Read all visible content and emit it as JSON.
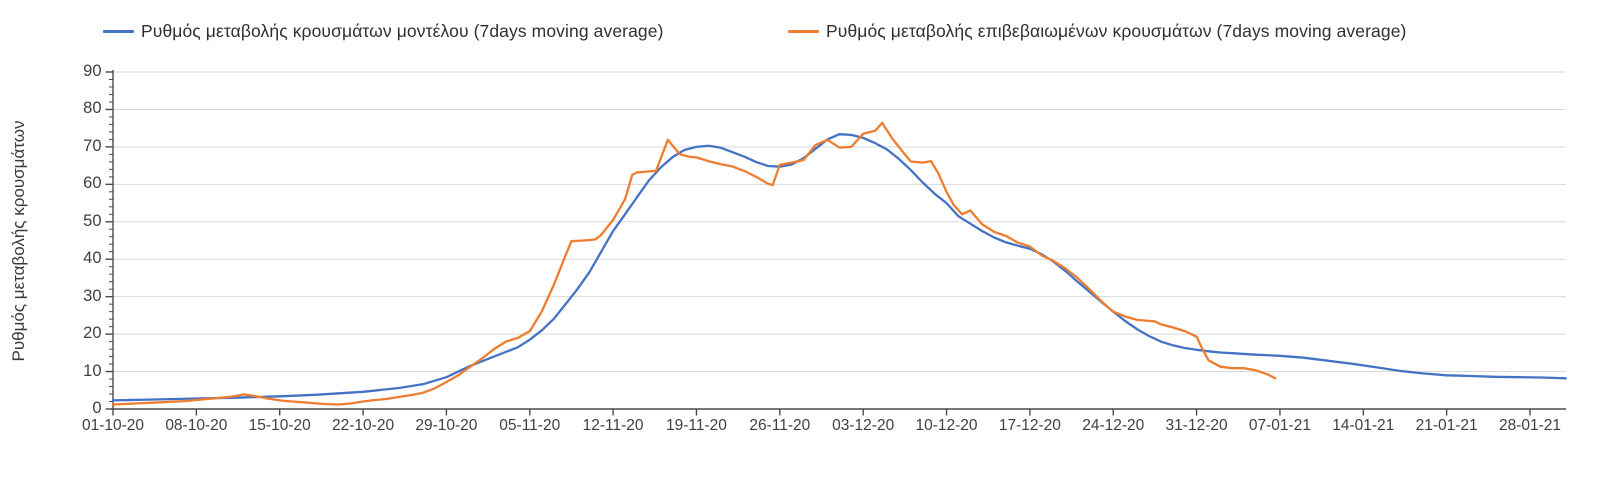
{
  "legend": {
    "model_label": "Ρυθμός μεταβολής κρουσμάτων μοντέλου (7days moving average)",
    "confirmed_label": "Ρυθμός μεταβολής επιβεβαιωμένων κρουσμάτων (7days moving average)"
  },
  "chart_data": {
    "type": "line",
    "title": "",
    "xlabel": "",
    "ylabel": "Ρυθμός μεταβολής κρουσμάτων",
    "ylim": [
      0,
      90
    ],
    "ytick_step": 10,
    "ytick_labels": [
      "0",
      "10",
      "20",
      "30",
      "40",
      "50",
      "60",
      "70",
      "80",
      "90"
    ],
    "grid": "horizontal",
    "legend_position": "top",
    "x_tick_interval_days": 7,
    "x_ticklabels": [
      "01-10-20",
      "08-10-20",
      "15-10-20",
      "22-10-20",
      "29-10-20",
      "05-11-20",
      "12-11-20",
      "19-11-20",
      "26-11-20",
      "03-12-20",
      "10-12-20",
      "17-12-20",
      "24-12-20",
      "31-12-20",
      "07-01-21",
      "14-01-21",
      "21-01-21",
      "28-01-21"
    ],
    "axis_color": "#4a4a4a",
    "grid_color": "#d9d9d9",
    "series": [
      {
        "name": "Ρυθμός μεταβολής κρουσμάτων μοντέλου (7days moving average)",
        "color": "#4472C4",
        "points": [
          [
            0,
            2.3
          ],
          [
            3,
            2.5
          ],
          [
            7,
            2.8
          ],
          [
            10,
            3.0
          ],
          [
            14,
            3.4
          ],
          [
            17,
            3.8
          ],
          [
            21,
            4.6
          ],
          [
            24,
            5.6
          ],
          [
            26,
            6.6
          ],
          [
            28,
            8.5
          ],
          [
            30,
            11.5
          ],
          [
            32,
            14.0
          ],
          [
            34,
            16.5
          ],
          [
            35,
            18.5
          ],
          [
            36,
            21.0
          ],
          [
            37,
            24.0
          ],
          [
            38,
            28.0
          ],
          [
            39,
            32.0
          ],
          [
            40,
            36.5
          ],
          [
            41,
            42.0
          ],
          [
            42,
            47.5
          ],
          [
            43,
            52.0
          ],
          [
            44,
            56.5
          ],
          [
            45,
            61.0
          ],
          [
            46,
            64.5
          ],
          [
            47,
            67.3
          ],
          [
            48,
            69.2
          ],
          [
            49,
            70.0
          ],
          [
            50,
            70.3
          ],
          [
            51,
            69.8
          ],
          [
            52,
            68.6
          ],
          [
            53,
            67.4
          ],
          [
            54,
            66.0
          ],
          [
            55,
            64.9
          ],
          [
            56,
            64.7
          ],
          [
            57,
            65.3
          ],
          [
            58,
            67.0
          ],
          [
            59,
            69.5
          ],
          [
            60,
            72.0
          ],
          [
            61,
            73.4
          ],
          [
            62,
            73.2
          ],
          [
            63,
            72.4
          ],
          [
            64,
            71.0
          ],
          [
            65,
            69.3
          ],
          [
            66,
            66.8
          ],
          [
            67,
            63.8
          ],
          [
            68,
            60.5
          ],
          [
            69,
            57.5
          ],
          [
            70,
            55.0
          ],
          [
            71,
            51.5
          ],
          [
            72,
            49.5
          ],
          [
            73,
            47.5
          ],
          [
            74,
            45.8
          ],
          [
            75,
            44.5
          ],
          [
            76,
            43.6
          ],
          [
            77,
            42.8
          ],
          [
            78,
            41.3
          ],
          [
            79,
            39.3
          ],
          [
            80,
            36.8
          ],
          [
            81,
            34.0
          ],
          [
            82,
            31.3
          ],
          [
            83,
            28.6
          ],
          [
            84,
            26.0
          ],
          [
            85,
            23.5
          ],
          [
            86,
            21.3
          ],
          [
            87,
            19.5
          ],
          [
            88,
            18.0
          ],
          [
            89,
            17.0
          ],
          [
            90,
            16.3
          ],
          [
            91,
            15.8
          ],
          [
            92,
            15.4
          ],
          [
            93,
            15.1
          ],
          [
            94,
            14.9
          ],
          [
            96,
            14.5
          ],
          [
            98,
            14.2
          ],
          [
            100,
            13.7
          ],
          [
            102,
            12.9
          ],
          [
            104,
            12.1
          ],
          [
            106,
            11.2
          ],
          [
            108,
            10.2
          ],
          [
            110,
            9.5
          ],
          [
            112,
            9.0
          ],
          [
            114,
            8.8
          ],
          [
            116,
            8.6
          ],
          [
            118,
            8.5
          ],
          [
            120,
            8.4
          ],
          [
            122,
            8.2
          ]
        ]
      },
      {
        "name": "Ρυθμός μεταβολής επιβεβαιωμένων κρουσμάτων (7days moving average)",
        "color": "#ED7D31",
        "points": [
          [
            0,
            1.2
          ],
          [
            2,
            1.5
          ],
          [
            4,
            1.8
          ],
          [
            6,
            2.1
          ],
          [
            7,
            2.4
          ],
          [
            8,
            2.7
          ],
          [
            9,
            3.0
          ],
          [
            10,
            3.3
          ],
          [
            11,
            3.9
          ],
          [
            12,
            3.4
          ],
          [
            13,
            2.8
          ],
          [
            14,
            2.3
          ],
          [
            15,
            2.0
          ],
          [
            16,
            1.8
          ],
          [
            17,
            1.5
          ],
          [
            18,
            1.3
          ],
          [
            19,
            1.2
          ],
          [
            20,
            1.5
          ],
          [
            21,
            2.0
          ],
          [
            22,
            2.4
          ],
          [
            23,
            2.7
          ],
          [
            24,
            3.2
          ],
          [
            25,
            3.7
          ],
          [
            26,
            4.3
          ],
          [
            27,
            5.5
          ],
          [
            28,
            7.2
          ],
          [
            29,
            9.0
          ],
          [
            30,
            11.3
          ],
          [
            31,
            13.5
          ],
          [
            32,
            16.0
          ],
          [
            33,
            18.0
          ],
          [
            34,
            19.0
          ],
          [
            35,
            20.8
          ],
          [
            36,
            26.0
          ],
          [
            37,
            33.0
          ],
          [
            38,
            41.0
          ],
          [
            38.5,
            44.8
          ],
          [
            40,
            45.1
          ],
          [
            40.5,
            45.3
          ],
          [
            41,
            46.5
          ],
          [
            42,
            50.5
          ],
          [
            43,
            56.0
          ],
          [
            43.6,
            62.5
          ],
          [
            44,
            63.2
          ],
          [
            45.6,
            63.6
          ],
          [
            46.6,
            71.9
          ],
          [
            47.6,
            68.0
          ],
          [
            48.5,
            67.3
          ],
          [
            49,
            67.2
          ],
          [
            50,
            66.2
          ],
          [
            51,
            65.4
          ],
          [
            52,
            64.8
          ],
          [
            53,
            63.6
          ],
          [
            54,
            62.0
          ],
          [
            55,
            60.2
          ],
          [
            55.4,
            59.8
          ],
          [
            56,
            65.2
          ],
          [
            57,
            65.8
          ],
          [
            58,
            66.5
          ],
          [
            59,
            70.5
          ],
          [
            60,
            71.9
          ],
          [
            61,
            69.8
          ],
          [
            62,
            70.0
          ],
          [
            63,
            73.5
          ],
          [
            64,
            74.3
          ],
          [
            64.6,
            76.4
          ],
          [
            65.5,
            72.0
          ],
          [
            66.5,
            68.0
          ],
          [
            67,
            66.1
          ],
          [
            68,
            65.8
          ],
          [
            68.7,
            66.2
          ],
          [
            69.3,
            63.0
          ],
          [
            70,
            58.0
          ],
          [
            70.6,
            54.5
          ],
          [
            71.3,
            52.0
          ],
          [
            72,
            53.0
          ],
          [
            73,
            49.3
          ],
          [
            74,
            47.3
          ],
          [
            75,
            46.2
          ],
          [
            76,
            44.4
          ],
          [
            77,
            43.4
          ],
          [
            78,
            41.0
          ],
          [
            79,
            39.5
          ],
          [
            80,
            37.5
          ],
          [
            81,
            35.0
          ],
          [
            82,
            32.0
          ],
          [
            83,
            28.8
          ],
          [
            84,
            26.0
          ],
          [
            85,
            24.7
          ],
          [
            86,
            23.8
          ],
          [
            87.5,
            23.4
          ],
          [
            88,
            22.6
          ],
          [
            89,
            21.8
          ],
          [
            90,
            20.8
          ],
          [
            91,
            19.3
          ],
          [
            91.5,
            16.0
          ],
          [
            92,
            13.0
          ],
          [
            93,
            11.3
          ],
          [
            94,
            10.9
          ],
          [
            95,
            10.9
          ],
          [
            96,
            10.3
          ],
          [
            97,
            9.2
          ],
          [
            97.6,
            8.2
          ]
        ]
      }
    ]
  }
}
